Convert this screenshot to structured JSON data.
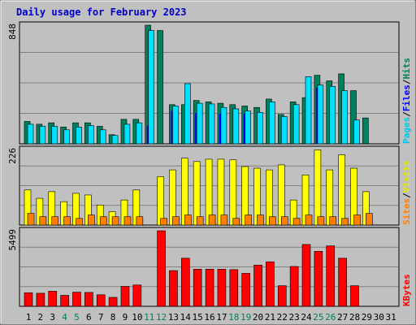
{
  "chart_data": {
    "type": "bar",
    "title": "Daily usage for February 2023",
    "days": [
      "1",
      "2",
      "3",
      "4",
      "5",
      "6",
      "7",
      "8",
      "9",
      "10",
      "11",
      "12",
      "13",
      "14",
      "15",
      "16",
      "17",
      "18",
      "19",
      "20",
      "21",
      "22",
      "23",
      "24",
      "25",
      "26",
      "27",
      "28",
      "29",
      "30",
      "31"
    ],
    "weekend_days": [
      "4",
      "5",
      "11",
      "12",
      "18",
      "19",
      "25",
      "26"
    ],
    "panels": [
      {
        "id": "hits",
        "ymax": 848,
        "ymax_label": "848",
        "side_labels": [
          "Pages",
          "Files",
          "Hits"
        ],
        "series": [
          {
            "name": "Hits",
            "color": "#00805c",
            "values": [
              160,
              140,
              150,
              120,
              150,
              150,
              125,
              65,
              175,
              175,
              848,
              810,
              280,
              280,
              310,
              300,
              290,
              280,
              270,
              260,
              320,
              210,
              300,
              330,
              490,
              450,
              500,
              380,
              185,
              0,
              0
            ]
          },
          {
            "name": "Files",
            "color": "#0000ff",
            "values": [
              0,
              0,
              0,
              0,
              0,
              0,
              0,
              0,
              0,
              0,
              130,
              0,
              235,
              0,
              220,
              0,
              215,
              0,
              215,
              0,
              0,
              0,
              0,
              0,
              400,
              0,
              0,
              0,
              0,
              0,
              0
            ]
          },
          {
            "name": "Pages",
            "color": "#00e0ff",
            "values": [
              140,
              125,
              125,
              100,
              120,
              130,
              100,
              60,
              140,
              150,
              810,
              0,
              270,
              430,
              290,
              285,
              260,
              250,
              235,
              225,
              300,
              195,
              280,
              480,
              420,
              410,
              380,
              170,
              0,
              0,
              0
            ]
          }
        ]
      },
      {
        "id": "visits",
        "ymax": 226,
        "ymax_label": "226",
        "side_labels": [
          "Sites",
          "Visits"
        ],
        "series": [
          {
            "name": "Visits",
            "color": "#ffff00",
            "values": [
              105,
              80,
              100,
              70,
              95,
              90,
              60,
              40,
              75,
              105,
              0,
              145,
              165,
              200,
              190,
              197,
              197,
              195,
              175,
              170,
              165,
              180,
              75,
              150,
              225,
              165,
              210,
              170,
              100,
              0,
              0
            ]
          },
          {
            "name": "Sites",
            "color": "#ff8000",
            "values": [
              35,
              25,
              25,
              25,
              20,
              30,
              25,
              25,
              25,
              25,
              0,
              20,
              25,
              30,
              25,
              30,
              30,
              20,
              30,
              30,
              25,
              25,
              20,
              30,
              25,
              25,
              20,
              30,
              35,
              0,
              0
            ]
          }
        ]
      },
      {
        "id": "kbytes",
        "ymax": 5499,
        "ymax_label": "5499",
        "side_labels": [
          "KBytes"
        ],
        "series": [
          {
            "name": "KBytes",
            "color": "#ff0000",
            "values": [
              990,
              950,
              1100,
              800,
              1030,
              1010,
              840,
              650,
              1450,
              1550,
              0,
              5499,
              2600,
              3500,
              2700,
              2700,
              2700,
              2670,
              2400,
              3000,
              3240,
              1500,
              2900,
              4500,
              4000,
              4400,
              3500,
              1500,
              0,
              0,
              0
            ]
          }
        ]
      }
    ],
    "x_axis": {
      "tick_labels_color": "#000000",
      "weekend_color": "#00805c"
    },
    "grid": true,
    "legend": "right-side vertical labels"
  }
}
